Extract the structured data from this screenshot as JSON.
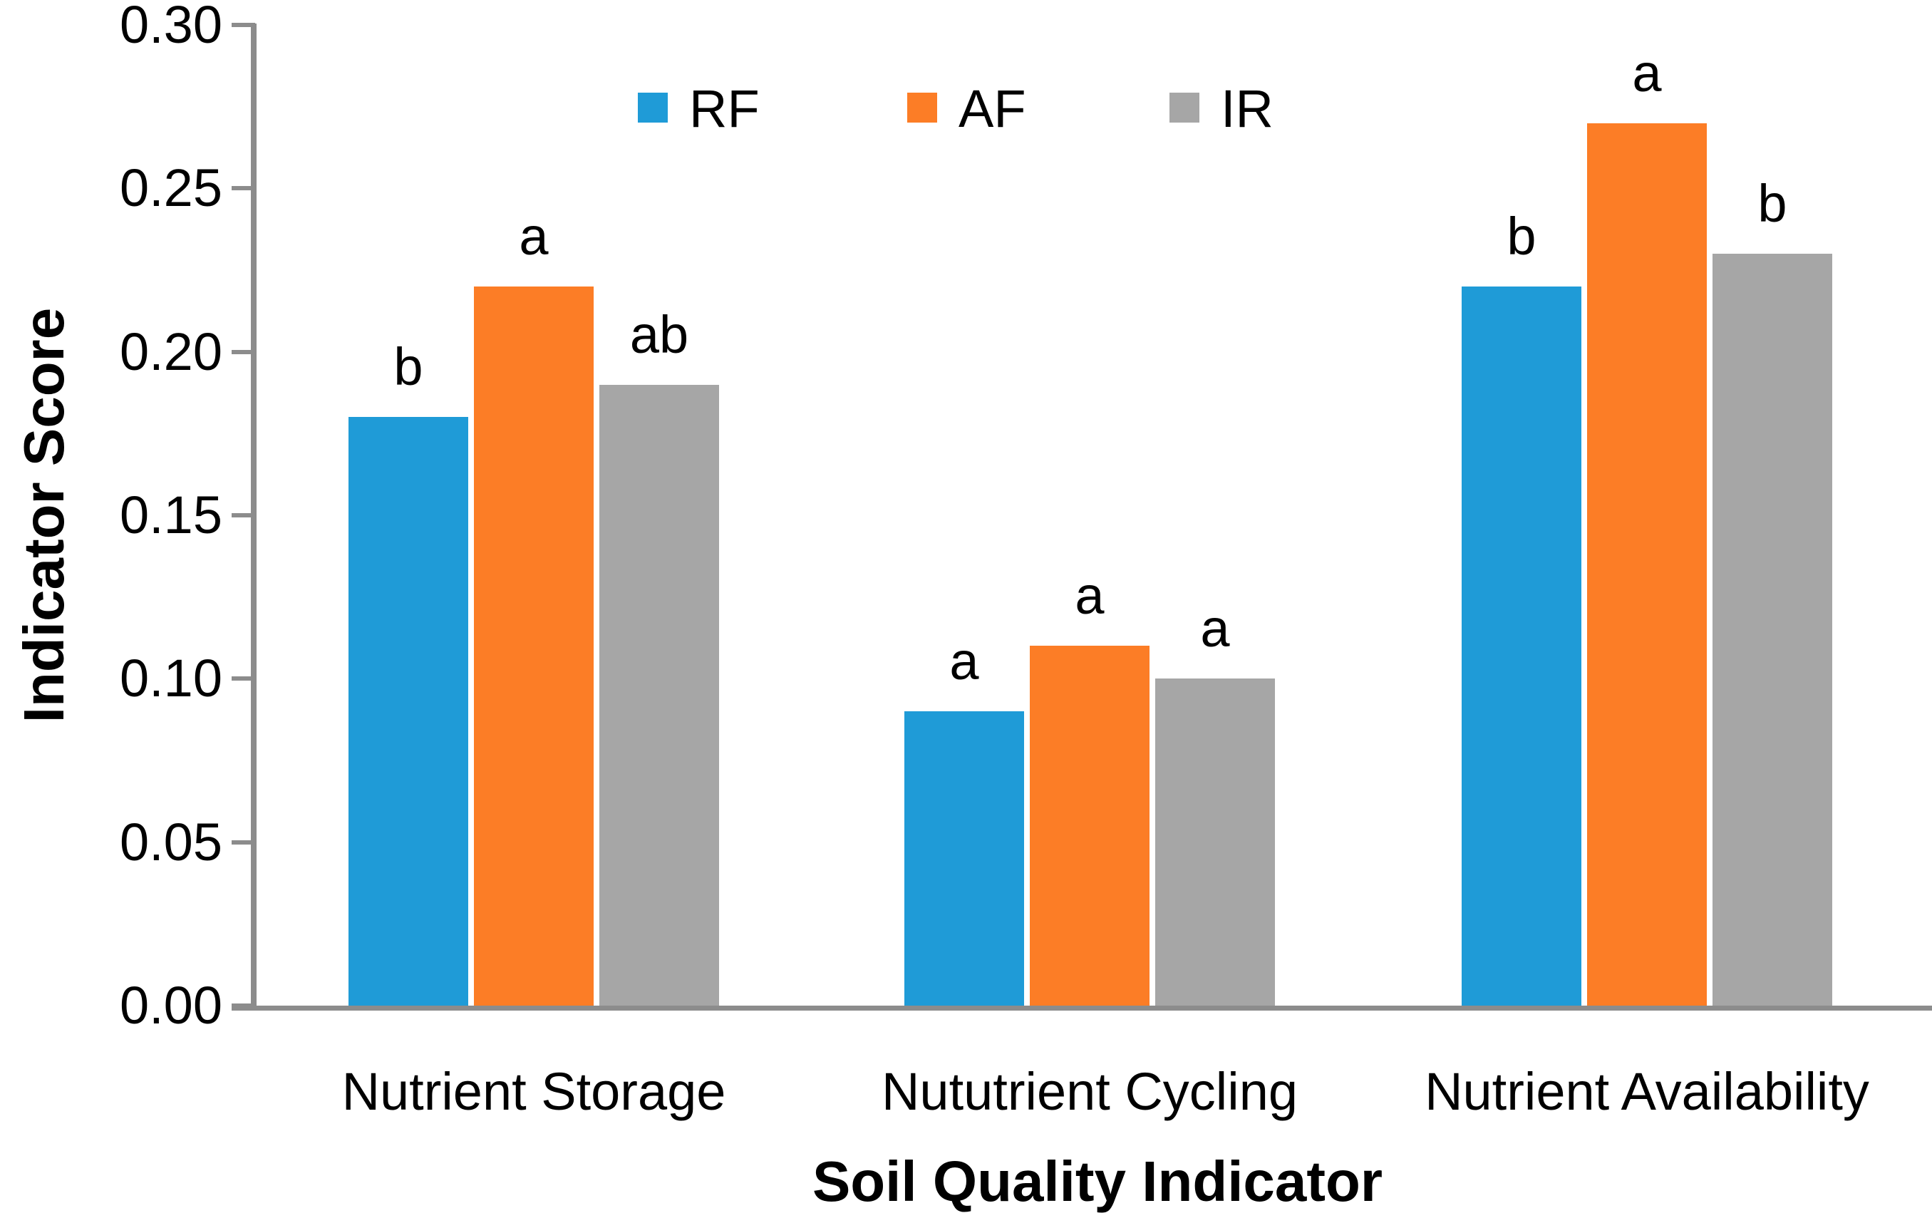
{
  "chart_data": {
    "type": "bar",
    "title": "",
    "xlabel": "Soil Quality Indicator",
    "ylabel": "Indicator Score",
    "categories": [
      "Nutrient Storage",
      "Nututrient Cycling",
      "Nutrient Availability"
    ],
    "series": [
      {
        "name": "RF",
        "color": "#1F9BD7",
        "values": [
          0.18,
          0.09,
          0.22
        ],
        "letters": [
          "b",
          "a",
          "b"
        ]
      },
      {
        "name": "AF",
        "color": "#FC7D26",
        "values": [
          0.22,
          0.11,
          0.27
        ],
        "letters": [
          "a",
          "a",
          "a"
        ]
      },
      {
        "name": "IR",
        "color": "#A6A6A6",
        "values": [
          0.19,
          0.1,
          0.23
        ],
        "letters": [
          "ab",
          "a",
          "b"
        ]
      }
    ],
    "ylim": [
      0.0,
      0.3
    ],
    "yticks": [
      0.3,
      0.25,
      0.2,
      0.15,
      0.1,
      0.05,
      0.0
    ],
    "ytick_labels": [
      "0.30",
      "0.25",
      "0.20",
      "0.15",
      "0.10",
      "0.05",
      "0.00"
    ],
    "grid": false,
    "legend_position": "top-center",
    "axis_color": "#8C8C8C",
    "text_color": "#000000",
    "background_color": "#FFFFFF"
  }
}
